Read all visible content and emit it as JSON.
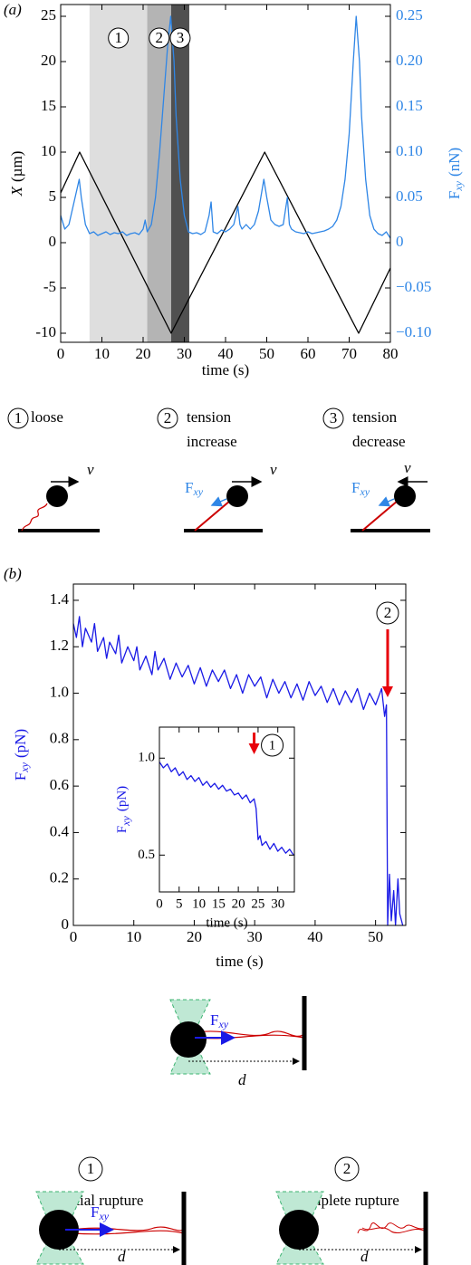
{
  "panel_labels": [
    "(a)",
    "(b)"
  ],
  "chart_data": [
    {
      "type": "line",
      "xlabel": "time (s)",
      "ylabel": {
        "symbol": "X",
        "unit": "(µm)"
      },
      "y2label": {
        "symbol": "F",
        "subscript": "xy",
        "unit": "(nN)"
      },
      "ylabel_color": "#000000",
      "y2label_color": "#2f86e6",
      "xlim": [
        0,
        80
      ],
      "xticks": [
        0,
        10,
        20,
        30,
        40,
        50,
        60,
        70,
        80
      ],
      "ylim": [
        -11,
        26.3
      ],
      "yticks": [
        -10,
        -5,
        0,
        5,
        10,
        15,
        20,
        25
      ],
      "y2lim": [
        -0.11,
        0.263
      ],
      "y2ticks": [
        {
          "value": -0.1,
          "label": "−0.10"
        },
        {
          "value": -0.05,
          "label": "−0.05"
        },
        0,
        {
          "value": 0.05,
          "label": "0.05"
        },
        {
          "value": 0.1,
          "label": "0.10"
        },
        {
          "value": 0.15,
          "label": "0.15"
        },
        {
          "value": 0.2,
          "label": "0.20"
        },
        0.25
      ],
      "grid": false,
      "regions": [
        {
          "x": [
            7,
            21
          ],
          "label": "1",
          "color": "#dedede"
        },
        {
          "x": [
            21,
            26.8
          ],
          "label": "2",
          "color": "#b4b4b4"
        },
        {
          "x": [
            26.8,
            31.2
          ],
          "label": "3",
          "color": "#505050"
        }
      ],
      "series": [
        {
          "name": "X",
          "color": "#000000",
          "x": [
            0,
            4.6,
            26.8,
            49.5,
            72.3,
            80
          ],
          "values": [
            5.5,
            10,
            -10,
            10,
            -10,
            -2.8
          ]
        },
        {
          "name": "Fxy",
          "color": "#2f86e6",
          "axis": "y2",
          "x": [
            0,
            1,
            2,
            3,
            4,
            4.5,
            5,
            6,
            7,
            8,
            9,
            10,
            11,
            12,
            13,
            14,
            15,
            16,
            17,
            18,
            19,
            20,
            20.5,
            21,
            22,
            23,
            24,
            25,
            26,
            26.7,
            27.5,
            28,
            29,
            30,
            31,
            32,
            33,
            34,
            35,
            36,
            36.5,
            37,
            38,
            39,
            40,
            41,
            42,
            43,
            43.5,
            44,
            45,
            46,
            47,
            48,
            49.3,
            50,
            51,
            52,
            53,
            54,
            55,
            55.5,
            56,
            57,
            58,
            59,
            60,
            61,
            62,
            63,
            64,
            65,
            66,
            67,
            68,
            69,
            70,
            71,
            71.7,
            72.5,
            73,
            74,
            75,
            76,
            77,
            78,
            79,
            80
          ],
          "values": [
            0.03,
            0.015,
            0.02,
            0.04,
            0.06,
            0.07,
            0.05,
            0.02,
            0.01,
            0.012,
            0.008,
            0.01,
            0.012,
            0.009,
            0.011,
            0.01,
            0.012,
            0.008,
            0.01,
            0.011,
            0.009,
            0.015,
            0.025,
            0.012,
            0.02,
            0.05,
            0.1,
            0.16,
            0.22,
            0.25,
            0.2,
            0.14,
            0.07,
            0.03,
            0.012,
            0.01,
            0.011,
            0.009,
            0.012,
            0.03,
            0.045,
            0.012,
            0.01,
            0.014,
            0.012,
            0.015,
            0.02,
            0.04,
            0.02,
            0.015,
            0.02,
            0.015,
            0.02,
            0.035,
            0.07,
            0.05,
            0.025,
            0.02,
            0.018,
            0.02,
            0.05,
            0.02,
            0.015,
            0.012,
            0.011,
            0.01,
            0.012,
            0.01,
            0.011,
            0.012,
            0.013,
            0.015,
            0.018,
            0.025,
            0.04,
            0.07,
            0.12,
            0.2,
            0.25,
            0.2,
            0.14,
            0.07,
            0.03,
            0.015,
            0.01,
            0.008,
            0.012,
            0.005
          ]
        }
      ]
    },
    {
      "type": "line",
      "xlabel": "time (s)",
      "ylabel": {
        "symbol": "F",
        "subscript": "xy",
        "unit": "(pN)"
      },
      "ylabel_color": "#1a1ae6",
      "xlim": [
        0,
        55
      ],
      "xticks": [
        0,
        10,
        20,
        30,
        40,
        50
      ],
      "ylim": [
        0,
        1.47
      ],
      "yticks": [
        0,
        0.2,
        0.4,
        0.6,
        0.8,
        {
          "value": 1,
          "label": "1.0"
        },
        1.2,
        1.4
      ],
      "grid": false,
      "annotations": [
        {
          "label": "2",
          "x": 52,
          "color": "#e8000b"
        }
      ],
      "series": [
        {
          "name": "Fxy",
          "color": "#1a1ae6",
          "x": [
            0,
            0.5,
            1,
            1.5,
            2,
            3,
            3.5,
            4,
            5,
            5.5,
            6,
            7,
            7.5,
            8,
            9,
            10,
            10.5,
            11,
            12,
            13,
            13.5,
            14,
            15,
            16,
            17,
            18,
            19,
            20,
            21,
            22,
            23,
            24,
            25,
            26,
            27,
            28,
            29,
            30,
            31,
            32,
            33,
            34,
            35,
            36,
            37,
            38,
            39,
            40,
            41,
            42,
            43,
            44,
            45,
            46,
            47,
            48,
            49,
            50,
            51,
            51.5,
            51.8,
            52,
            52.3,
            52.6,
            53,
            53.3,
            53.7,
            54,
            54.5
          ],
          "values": [
            1.3,
            1.24,
            1.33,
            1.2,
            1.28,
            1.22,
            1.3,
            1.18,
            1.24,
            1.15,
            1.22,
            1.17,
            1.25,
            1.13,
            1.2,
            1.14,
            1.2,
            1.1,
            1.16,
            1.08,
            1.18,
            1.1,
            1.15,
            1.06,
            1.13,
            1.07,
            1.12,
            1.04,
            1.11,
            1.03,
            1.1,
            1.05,
            1.1,
            1.02,
            1.08,
            1.0,
            1.08,
            1.03,
            1.07,
            0.98,
            1.06,
            1.0,
            1.05,
            0.98,
            1.04,
            0.97,
            1.05,
            0.99,
            1.03,
            0.96,
            1.02,
            0.95,
            1.01,
            0.96,
            1.02,
            0.93,
            1.0,
            0.95,
            1.02,
            0.9,
            0.95,
            0.0,
            0.22,
            0.02,
            0.15,
            0.0,
            0.2,
            0.05,
            0.0
          ]
        }
      ]
    },
    {
      "type": "line",
      "xlabel": "time (s)",
      "ylabel": {
        "symbol": "F",
        "subscript": "xy",
        "unit": "(pN)"
      },
      "ylabel_color": "#1a1ae6",
      "xlim": [
        0,
        34.2
      ],
      "xticks": [
        0,
        5,
        10,
        15,
        20,
        25,
        30
      ],
      "ylim": [
        0.31,
        1.16
      ],
      "yticks": [
        0.5,
        {
          "value": 1,
          "label": "1.0"
        }
      ],
      "grid": false,
      "annotations": [
        {
          "label": "1",
          "x": 24,
          "color": "#e8000b"
        }
      ],
      "series": [
        {
          "name": "Fxy",
          "color": "#1a1ae6",
          "x": [
            0,
            1,
            2,
            3,
            4,
            5,
            6,
            7,
            8,
            9,
            10,
            11,
            12,
            13,
            14,
            15,
            16,
            17,
            18,
            19,
            20,
            21,
            22,
            23,
            24,
            24.5,
            25,
            25.5,
            26,
            27,
            28,
            29,
            30,
            31,
            32,
            33,
            34
          ],
          "values": [
            0.98,
            0.95,
            0.97,
            0.93,
            0.95,
            0.91,
            0.93,
            0.89,
            0.91,
            0.88,
            0.9,
            0.86,
            0.88,
            0.85,
            0.87,
            0.84,
            0.86,
            0.83,
            0.84,
            0.81,
            0.82,
            0.79,
            0.81,
            0.77,
            0.79,
            0.74,
            0.58,
            0.6,
            0.55,
            0.57,
            0.53,
            0.56,
            0.52,
            0.54,
            0.51,
            0.53,
            0.5
          ]
        }
      ]
    }
  ],
  "schematic_a": {
    "items": [
      {
        "number": "1",
        "lines": [
          "loose"
        ],
        "velocity": "v"
      },
      {
        "number": "2",
        "lines": [
          "tension",
          "increase"
        ],
        "velocity": "v",
        "force": [
          "F",
          "xy"
        ]
      },
      {
        "number": "3",
        "lines": [
          "tension",
          "decrease"
        ],
        "velocity": "v",
        "force": [
          "F",
          "xy"
        ]
      }
    ]
  },
  "schematic_b": {
    "top": {
      "force": [
        "F",
        "xy"
      ],
      "distance": "d"
    },
    "items": [
      {
        "number": "1",
        "label": "partial rupture",
        "force": [
          "F",
          "xy"
        ],
        "distance": "d"
      },
      {
        "number": "2",
        "label": "complete rupture",
        "distance": "d"
      }
    ]
  }
}
